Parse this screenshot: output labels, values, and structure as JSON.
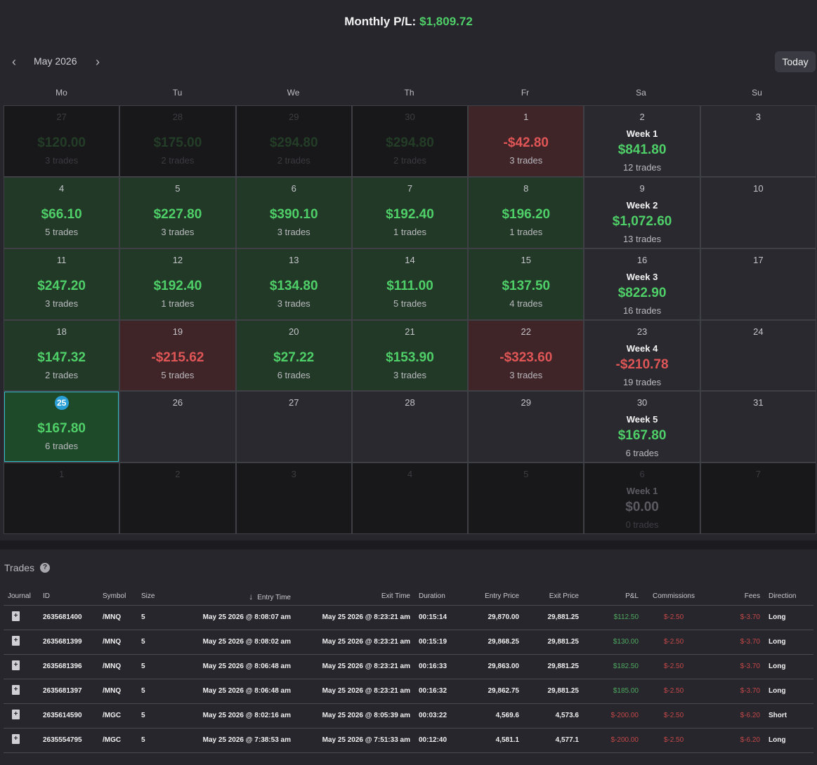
{
  "header": {
    "label": "Monthly P/L:",
    "amount": "$1,809.72"
  },
  "nav": {
    "prev": "‹",
    "next": "›",
    "month": "May 2026",
    "today": "Today"
  },
  "weekdays": [
    "Mo",
    "Tu",
    "We",
    "Th",
    "Fr",
    "Sa",
    "Su"
  ],
  "calendar": [
    {
      "day": "27",
      "pl": "$120.00",
      "trades": "3 trades",
      "tone": "pos",
      "outside": true
    },
    {
      "day": "28",
      "pl": "$175.00",
      "trades": "2 trades",
      "tone": "pos",
      "outside": true
    },
    {
      "day": "29",
      "pl": "$294.80",
      "trades": "2 trades",
      "tone": "pos",
      "outside": true
    },
    {
      "day": "30",
      "pl": "$294.80",
      "trades": "2 trades",
      "tone": "pos",
      "outside": true
    },
    {
      "day": "1",
      "pl": "-$42.80",
      "trades": "3 trades",
      "tone": "neg"
    },
    {
      "day": "2",
      "week": "Week 1",
      "pl": "$841.80",
      "trades": "12 trades",
      "tone": "pos"
    },
    {
      "day": "3"
    },
    {
      "day": "4",
      "pl": "$66.10",
      "trades": "5 trades",
      "tone": "pos"
    },
    {
      "day": "5",
      "pl": "$227.80",
      "trades": "3 trades",
      "tone": "pos"
    },
    {
      "day": "6",
      "pl": "$390.10",
      "trades": "3 trades",
      "tone": "pos"
    },
    {
      "day": "7",
      "pl": "$192.40",
      "trades": "1 trades",
      "tone": "pos"
    },
    {
      "day": "8",
      "pl": "$196.20",
      "trades": "1 trades",
      "tone": "pos"
    },
    {
      "day": "9",
      "week": "Week 2",
      "pl": "$1,072.60",
      "trades": "13 trades",
      "tone": "pos"
    },
    {
      "day": "10"
    },
    {
      "day": "11",
      "pl": "$247.20",
      "trades": "3 trades",
      "tone": "pos"
    },
    {
      "day": "12",
      "pl": "$192.40",
      "trades": "1 trades",
      "tone": "pos"
    },
    {
      "day": "13",
      "pl": "$134.80",
      "trades": "3 trades",
      "tone": "pos"
    },
    {
      "day": "14",
      "pl": "$111.00",
      "trades": "5 trades",
      "tone": "pos"
    },
    {
      "day": "15",
      "pl": "$137.50",
      "trades": "4 trades",
      "tone": "pos"
    },
    {
      "day": "16",
      "week": "Week 3",
      "pl": "$822.90",
      "trades": "16 trades",
      "tone": "pos"
    },
    {
      "day": "17"
    },
    {
      "day": "18",
      "pl": "$147.32",
      "trades": "2 trades",
      "tone": "pos"
    },
    {
      "day": "19",
      "pl": "-$215.62",
      "trades": "5 trades",
      "tone": "neg"
    },
    {
      "day": "20",
      "pl": "$27.22",
      "trades": "6 trades",
      "tone": "pos"
    },
    {
      "day": "21",
      "pl": "$153.90",
      "trades": "3 trades",
      "tone": "pos"
    },
    {
      "day": "22",
      "pl": "-$323.60",
      "trades": "3 trades",
      "tone": "neg"
    },
    {
      "day": "23",
      "week": "Week 4",
      "pl": "-$210.78",
      "trades": "19 trades",
      "tone": "neg"
    },
    {
      "day": "24"
    },
    {
      "day": "25",
      "pl": "$167.80",
      "trades": "6 trades",
      "tone": "pos",
      "today": true
    },
    {
      "day": "26"
    },
    {
      "day": "27"
    },
    {
      "day": "28"
    },
    {
      "day": "29"
    },
    {
      "day": "30",
      "week": "Week 5",
      "pl": "$167.80",
      "trades": "6 trades",
      "tone": "pos"
    },
    {
      "day": "31"
    },
    {
      "day": "1",
      "outside": true
    },
    {
      "day": "2",
      "outside": true
    },
    {
      "day": "3",
      "outside": true
    },
    {
      "day": "4",
      "outside": true
    },
    {
      "day": "5",
      "outside": true
    },
    {
      "day": "6",
      "week": "Week 1",
      "pl": "$0.00",
      "trades": "0 trades",
      "tone": "zero",
      "outside": true
    },
    {
      "day": "7",
      "outside": true
    }
  ],
  "trades": {
    "title": "Trades",
    "help": "?",
    "sort_icon": "↓",
    "columns": [
      "Journal",
      "ID",
      "Symbol",
      "Size",
      "Entry Time",
      "Exit Time",
      "Duration",
      "Entry Price",
      "Exit Price",
      "P&L",
      "Commissions",
      "Fees",
      "Direction"
    ],
    "rows": [
      {
        "id": "2635681400",
        "symbol": "/MNQ",
        "size": "5",
        "entry_time": "May 25 2026 @ 8:08:07 am",
        "exit_time": "May 25 2026 @ 8:23:21 am",
        "duration": "00:15:14",
        "entry_price": "29,870.00",
        "exit_price": "29,881.25",
        "pl": "$112.50",
        "commissions": "$-2.50",
        "fees": "$-3.70",
        "direction": "Long"
      },
      {
        "id": "2635681399",
        "symbol": "/MNQ",
        "size": "5",
        "entry_time": "May 25 2026 @ 8:08:02 am",
        "exit_time": "May 25 2026 @ 8:23:21 am",
        "duration": "00:15:19",
        "entry_price": "29,868.25",
        "exit_price": "29,881.25",
        "pl": "$130.00",
        "commissions": "$-2.50",
        "fees": "$-3.70",
        "direction": "Long"
      },
      {
        "id": "2635681396",
        "symbol": "/MNQ",
        "size": "5",
        "entry_time": "May 25 2026 @ 8:06:48 am",
        "exit_time": "May 25 2026 @ 8:23:21 am",
        "duration": "00:16:33",
        "entry_price": "29,863.00",
        "exit_price": "29,881.25",
        "pl": "$182.50",
        "commissions": "$-2.50",
        "fees": "$-3.70",
        "direction": "Long"
      },
      {
        "id": "2635681397",
        "symbol": "/MNQ",
        "size": "5",
        "entry_time": "May 25 2026 @ 8:06:48 am",
        "exit_time": "May 25 2026 @ 8:23:21 am",
        "duration": "00:16:32",
        "entry_price": "29,862.75",
        "exit_price": "29,881.25",
        "pl": "$185.00",
        "commissions": "$-2.50",
        "fees": "$-3.70",
        "direction": "Long"
      },
      {
        "id": "2635614590",
        "symbol": "/MGC",
        "size": "5",
        "entry_time": "May 25 2026 @ 8:02:16 am",
        "exit_time": "May 25 2026 @ 8:05:39 am",
        "duration": "00:03:22",
        "entry_price": "4,569.6",
        "exit_price": "4,573.6",
        "pl": "$-200.00",
        "commissions": "$-2.50",
        "fees": "$-6.20",
        "direction": "Short"
      },
      {
        "id": "2635554795",
        "symbol": "/MGC",
        "size": "5",
        "entry_time": "May 25 2026 @ 7:38:53 am",
        "exit_time": "May 25 2026 @ 7:51:33 am",
        "duration": "00:12:40",
        "entry_price": "4,581.1",
        "exit_price": "4,577.1",
        "pl": "$-200.00",
        "commissions": "$-2.50",
        "fees": "$-6.20",
        "direction": "Long"
      }
    ]
  },
  "colors": {
    "positive": "#4fcf68",
    "negative": "#e05656",
    "accent": "#2a9fd6",
    "background": "#26262c"
  }
}
